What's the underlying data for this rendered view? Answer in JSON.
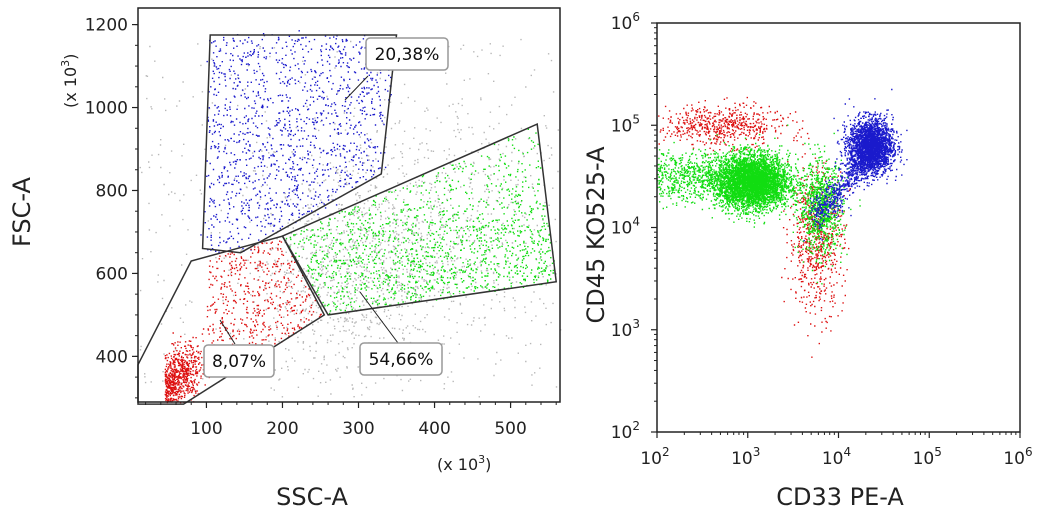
{
  "chart_data": [
    {
      "type": "scatter",
      "title": "",
      "xlabel": "SSC-A",
      "ylabel": "FSC-A",
      "x_multiplier": "(x 10",
      "y_multiplier": "(x 10",
      "multiplier_exponent": "3",
      "multiplier_close": ")",
      "xlim": [
        10,
        565
      ],
      "ylim": [
        290,
        1240
      ],
      "xticks": [
        100,
        200,
        300,
        400,
        500
      ],
      "yticks": [
        400,
        600,
        800,
        1000,
        1200
      ],
      "x": [
        155,
        260,
        380,
        320,
        480,
        60,
        120,
        180
      ],
      "y": [
        900,
        1000,
        660,
        700,
        750,
        330,
        450,
        520
      ],
      "gates": [
        {
          "population": "blue",
          "color": "#1a1acc",
          "percent": "20,38%",
          "polygon": [
            [
              105,
              1175
            ],
            [
              350,
              1175
            ],
            [
              330,
              840
            ],
            [
              145,
              650
            ],
            [
              95,
              660
            ]
          ]
        },
        {
          "population": "green",
          "color": "#11dd11",
          "percent": "54,66%",
          "polygon": [
            [
              200,
              690
            ],
            [
              535,
              960
            ],
            [
              560,
              580
            ],
            [
              260,
              500
            ]
          ]
        },
        {
          "population": "red",
          "color": "#dd1111",
          "percent": "8,07%",
          "polygon": [
            [
              10,
              380
            ],
            [
              80,
              630
            ],
            [
              200,
              690
            ],
            [
              255,
              500
            ],
            [
              70,
              285
            ],
            [
              10,
              285
            ]
          ]
        }
      ],
      "background_color": "#b8b8b8",
      "grid": false
    },
    {
      "type": "scatter",
      "title": "",
      "xlabel": "CD33 PE-A",
      "ylabel": "CD45 KO525-A",
      "scale": "log",
      "xlim": [
        100,
        1000000
      ],
      "ylim": [
        100,
        1000000
      ],
      "tick_base": "10",
      "tick_exponents": [
        "2",
        "3",
        "4",
        "5",
        "6"
      ],
      "populations": [
        {
          "color": "#dd1111",
          "center": [
            500,
            100000
          ]
        },
        {
          "color": "#11dd11",
          "center": [
            1200,
            30000
          ]
        },
        {
          "color": "#1a1acc",
          "center": [
            22000,
            60000
          ]
        }
      ],
      "grid": false
    }
  ]
}
